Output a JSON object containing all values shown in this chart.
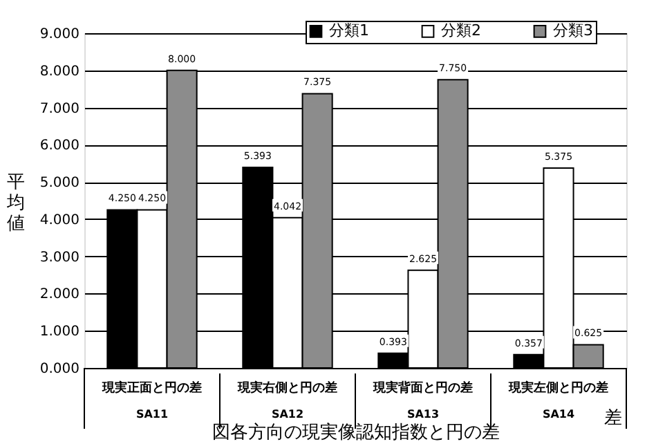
{
  "chart_data": {
    "type": "bar",
    "xlabel": "図各方向の現実像認知指数と円の差",
    "ylabel": "平均値",
    "categories": [
      "現実正面と円の差",
      "現実右側と円の差",
      "現実背面と円の差",
      "現実左側と円の差"
    ],
    "series": [
      {
        "name": "分類1",
        "color": "#000000",
        "values": [
          4.25,
          5.393,
          0.393,
          0.357
        ],
        "value_labels": [
          "4.250",
          "5.393",
          "0.393",
          "0.357"
        ]
      },
      {
        "name": "分類2",
        "color": "#ffffff",
        "values": [
          4.25,
          4.042,
          2.625,
          5.375
        ],
        "value_labels": [
          "4.250",
          "4.042",
          "2.625",
          "5.375"
        ]
      },
      {
        "name": "分類3",
        "color": "#8c8c8c",
        "values": [
          8.0,
          7.375,
          7.75,
          0.625
        ],
        "value_labels": [
          "8.000",
          "7.375",
          "7.750",
          "0.625"
        ]
      }
    ],
    "ylim": [
      0,
      9
    ],
    "yticks": [
      {
        "value": 0,
        "label": "0.000"
      },
      {
        "value": 1,
        "label": "1.000"
      },
      {
        "value": 2,
        "label": "2.000"
      },
      {
        "value": 3,
        "label": "3.000"
      },
      {
        "value": 4,
        "label": "4.000"
      },
      {
        "value": 5,
        "label": "5.000"
      },
      {
        "value": 6,
        "label": "6.000"
      },
      {
        "value": 7,
        "label": "7.000"
      },
      {
        "value": 8,
        "label": "8.000"
      },
      {
        "value": 9,
        "label": "9.000"
      }
    ],
    "annotations": [
      "SA11",
      "SA12",
      "SA13",
      "SA14",
      "差"
    ],
    "grid": "y",
    "legend": "top right"
  }
}
